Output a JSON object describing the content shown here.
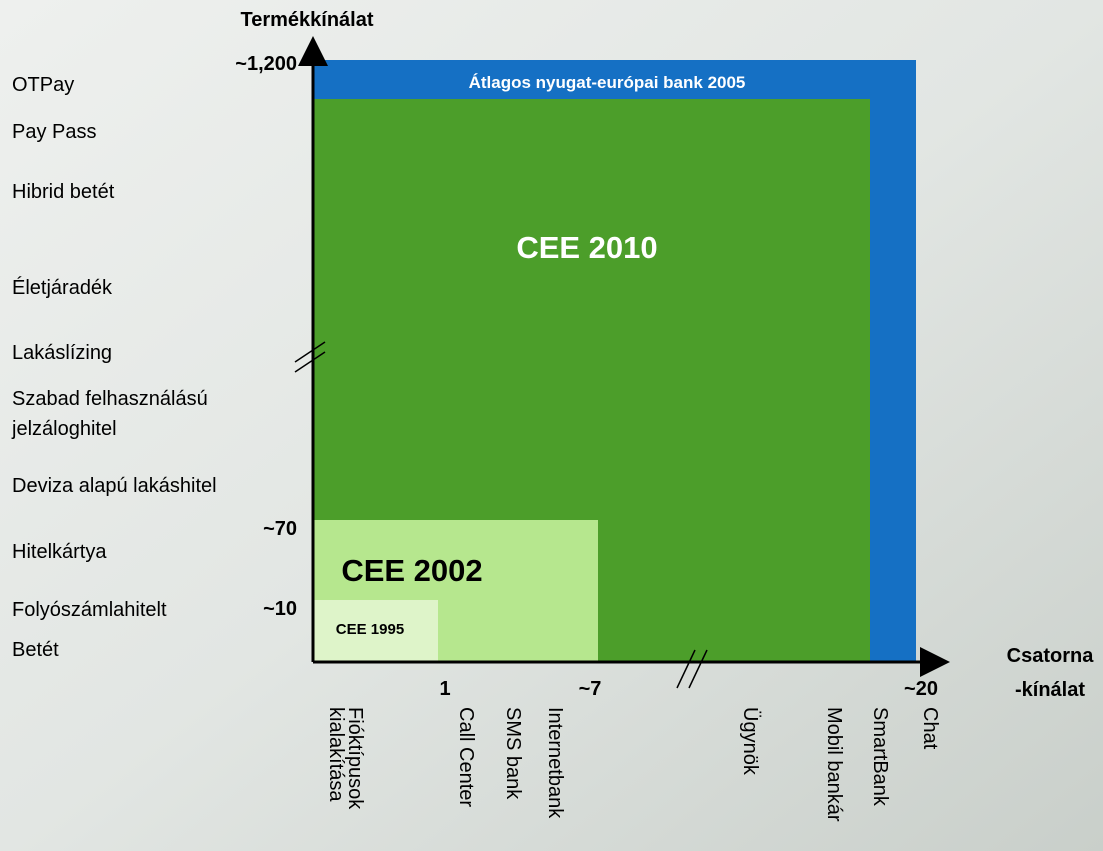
{
  "y_axis": {
    "title": "Termékkínálat",
    "ticks": [
      "~1,200",
      "~70",
      "~10"
    ]
  },
  "products": [
    [
      "OTPay"
    ],
    [
      "Pay Pass"
    ],
    [
      "Hibrid betét"
    ],
    [
      "Életjáradék"
    ],
    [
      "Lakáslízing"
    ],
    [
      "Szabad felhasználású",
      "jelzáloghitel"
    ],
    [
      "Deviza alapú lakáshitel"
    ],
    [
      "Hitelkártya"
    ],
    [
      "Folyószámlahitelt"
    ],
    [
      "Betét"
    ]
  ],
  "x_axis": {
    "title": [
      "Csatorna",
      "-kínálat"
    ],
    "ticks": [
      "1",
      "~7",
      "~20"
    ]
  },
  "channels": [
    [
      "Fióktípusok",
      "kialakítása"
    ],
    [
      "Call Center"
    ],
    [
      "SMS bank"
    ],
    [
      "Internetbank"
    ],
    [
      "Ügynök"
    ],
    [
      "Mobil bankár"
    ],
    [
      "SmartBank"
    ],
    [
      "Chat"
    ]
  ],
  "boxes": [
    "Átlagos nyugat-európai bank 2005",
    "CEE 2010",
    "CEE 2002",
    "CEE 1995"
  ]
}
